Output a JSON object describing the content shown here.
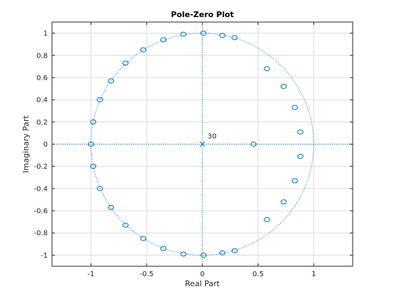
{
  "chart_data": {
    "type": "scatter",
    "title": "Pole-Zero Plot",
    "xlabel": "Real Part",
    "ylabel": "Imaginary Part",
    "xlim": [
      -1.35,
      1.35
    ],
    "ylim": [
      -1.1,
      1.1
    ],
    "xticks": [
      -1,
      -0.5,
      0,
      0.5,
      1
    ],
    "xtick_labels": [
      "-1",
      "-0.5",
      "0",
      "0.5",
      "1"
    ],
    "yticks": [
      -1,
      -0.8,
      -0.6,
      -0.4,
      -0.2,
      0,
      0.2,
      0.4,
      0.6,
      0.8,
      1
    ],
    "ytick_labels": [
      "-1",
      "-0.8",
      "-0.6",
      "-0.4",
      "-0.2",
      "0",
      "0.2",
      "0.4",
      "0.6",
      "0.8",
      "1"
    ],
    "grid": true,
    "unit_circle": true,
    "series": [
      {
        "marker": "o",
        "points": [
          {
            "x": 0.01,
            "y": 1.0
          },
          {
            "x": 0.18,
            "y": 0.98
          },
          {
            "x": 0.29,
            "y": 0.96
          },
          {
            "x": -0.17,
            "y": 0.99
          },
          {
            "x": -0.35,
            "y": 0.94
          },
          {
            "x": -0.53,
            "y": 0.85
          },
          {
            "x": -0.69,
            "y": 0.73
          },
          {
            "x": -0.82,
            "y": 0.57
          },
          {
            "x": -0.92,
            "y": 0.4
          },
          {
            "x": -0.98,
            "y": 0.2
          },
          {
            "x": -1.0,
            "y": 0.0
          },
          {
            "x": -0.98,
            "y": -0.2
          },
          {
            "x": -0.92,
            "y": -0.4
          },
          {
            "x": -0.82,
            "y": -0.57
          },
          {
            "x": -0.69,
            "y": -0.73
          },
          {
            "x": -0.53,
            "y": -0.85
          },
          {
            "x": -0.35,
            "y": -0.94
          },
          {
            "x": -0.17,
            "y": -0.99
          },
          {
            "x": 0.01,
            "y": -1.0
          },
          {
            "x": 0.18,
            "y": -0.98
          },
          {
            "x": 0.29,
            "y": -0.96
          },
          {
            "x": 0.58,
            "y": 0.68
          },
          {
            "x": 0.73,
            "y": 0.52
          },
          {
            "x": 0.83,
            "y": 0.33
          },
          {
            "x": 0.88,
            "y": 0.11
          },
          {
            "x": 0.88,
            "y": -0.11
          },
          {
            "x": 0.83,
            "y": -0.33
          },
          {
            "x": 0.73,
            "y": -0.52
          },
          {
            "x": 0.58,
            "y": -0.68
          },
          {
            "x": 0.46,
            "y": 0.0
          }
        ]
      },
      {
        "marker": "x",
        "points": [
          {
            "x": 0,
            "y": 0
          }
        ]
      }
    ],
    "annotations": [
      {
        "text": "30",
        "x": 0.04,
        "y": 0.04
      }
    ],
    "colors": {
      "marker": "#0072BD",
      "grid": "#dcdcdc",
      "axis_box": "#262626",
      "text": "#262626"
    }
  }
}
